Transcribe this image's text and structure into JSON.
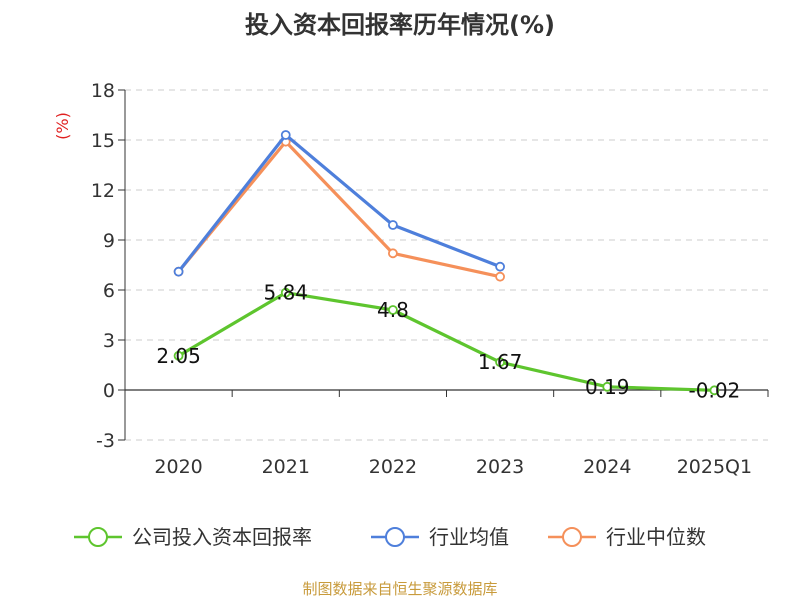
{
  "chart_data": {
    "type": "line",
    "title": "投入资本回报率历年情况(%)",
    "ylabel": "(%)",
    "xlabel": "",
    "categories": [
      "2020",
      "2021",
      "2022",
      "2023",
      "2024",
      "2025Q1"
    ],
    "ylim": [
      -3,
      18
    ],
    "yticks": [
      -3,
      0,
      3,
      6,
      9,
      12,
      15,
      18
    ],
    "grid": true,
    "legend_position": "bottom",
    "series": [
      {
        "name": "公司投入资本回报率",
        "color": "#5ec52e",
        "values": [
          2.05,
          5.84,
          4.8,
          1.67,
          0.19,
          -0.02
        ],
        "labels": [
          "2.05",
          "5.84",
          "4.8",
          "1.67",
          "0.19",
          "-0.02"
        ]
      },
      {
        "name": "行业均值",
        "color": "#4e7fdb",
        "values": [
          7.1,
          15.3,
          9.9,
          7.4,
          null,
          null
        ]
      },
      {
        "name": "行业中位数",
        "color": "#f5905a",
        "values": [
          7.1,
          14.9,
          8.2,
          6.8,
          null,
          null
        ]
      }
    ]
  },
  "source": "制图数据来自恒生聚源数据库"
}
